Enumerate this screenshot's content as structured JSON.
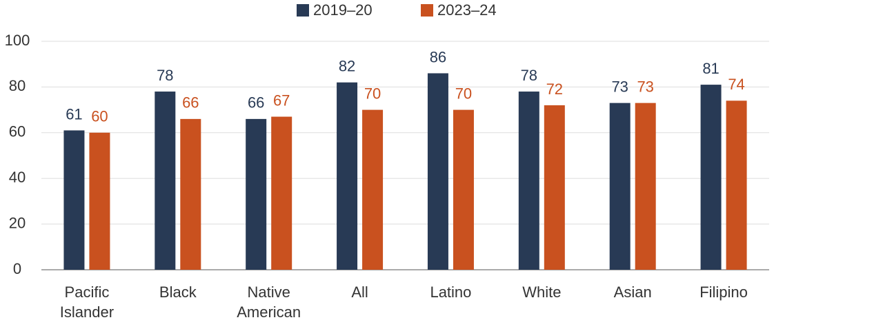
{
  "chart_data": {
    "type": "bar",
    "categories": [
      "Pacific Islander",
      "Black",
      "Native American",
      "All",
      "Latino",
      "White",
      "Asian",
      "Filipino"
    ],
    "series": [
      {
        "name": "2019–20",
        "color": "#283a55",
        "values": [
          61,
          78,
          66,
          82,
          86,
          78,
          73,
          81
        ]
      },
      {
        "name": "2023–24",
        "color": "#c9511f",
        "values": [
          60,
          66,
          67,
          70,
          70,
          72,
          73,
          74
        ]
      }
    ],
    "ylim": [
      0,
      100
    ],
    "yticks": [
      0,
      20,
      40,
      60,
      80,
      100
    ],
    "grid": true,
    "legend": "top"
  }
}
